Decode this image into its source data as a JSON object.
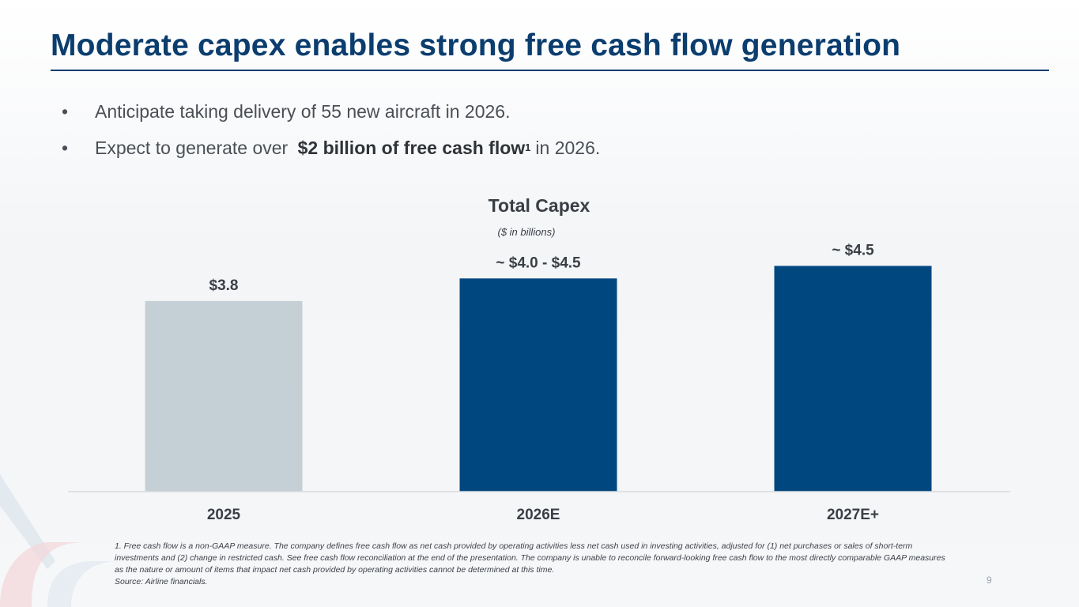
{
  "slide": {
    "title": "Moderate capex enables strong free cash flow generation",
    "page_number": "9"
  },
  "bullets": [
    {
      "text": "Anticipate taking delivery of 55 new aircraft in 2026."
    },
    {
      "prefix": "Expect to generate over ",
      "bold": "$2 billion of free cash flow",
      "sup": "1",
      "suffix": "in 2026."
    }
  ],
  "bullet_symbol": "•",
  "chart_data": {
    "type": "bar",
    "title": "Total Capex",
    "subtitle": "($ in billions)",
    "categories": [
      "2025",
      "2026E",
      "2027E+"
    ],
    "values": [
      3.8,
      4.25,
      4.5
    ],
    "labels": [
      "$3.8",
      "~ $4.0 - $4.5",
      "~ $4.5"
    ],
    "colors": [
      "#c5d0d6",
      "#00467f",
      "#00467f"
    ],
    "ylim": [
      0,
      5.2
    ],
    "xlabel": "",
    "ylabel": ""
  },
  "footnotes": [
    "1. Free cash flow is a non-GAAP measure. The company defines free cash flow as net cash provided by operating activities less net cash used in investing activities, adjusted for (1) net purchases or sales of short-term investments and (2) change in restricted cash. See free cash flow reconciliation at the end of the presentation. The company is unable to reconcile forward-looking free cash flow to the most directly comparable GAAP measures as the nature or amount of items that impact net cash provided by operating activities cannot be determined at this time.",
    "Source: Airline financials."
  ]
}
